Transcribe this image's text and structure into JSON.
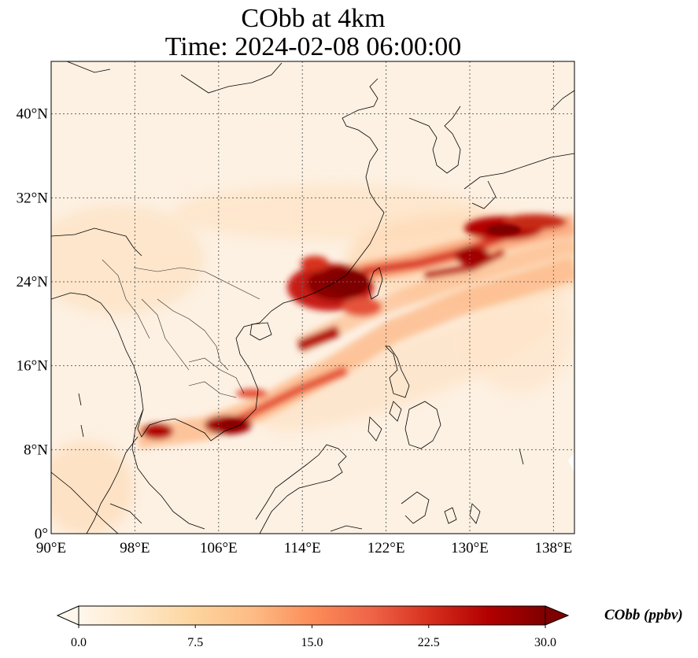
{
  "title": {
    "line1": "CObb at 4km",
    "line2": "Time: 2024-02-08 06:00:00"
  },
  "map": {
    "projection": "PlateCarree",
    "lon_range": [
      90,
      140
    ],
    "lat_range": [
      0,
      45
    ],
    "gridlines": "dotted",
    "colormap": "OrRd",
    "lon_ticks": [
      {
        "value": 90,
        "label": "90°E"
      },
      {
        "value": 98,
        "label": "98°E"
      },
      {
        "value": 106,
        "label": "106°E"
      },
      {
        "value": 114,
        "label": "114°E"
      },
      {
        "value": 122,
        "label": "122°E"
      },
      {
        "value": 130,
        "label": "130°E"
      },
      {
        "value": 138,
        "label": "138°E"
      }
    ],
    "lat_ticks": [
      {
        "value": 0,
        "label": "0°"
      },
      {
        "value": 8,
        "label": "8°N"
      },
      {
        "value": 16,
        "label": "16°N"
      },
      {
        "value": 24,
        "label": "24°N"
      },
      {
        "value": 32,
        "label": "32°N"
      },
      {
        "value": 40,
        "label": "40°N"
      }
    ],
    "plumes": [
      {
        "name": "plume-taiwan-strait",
        "lon": 117.5,
        "lat": 23.8,
        "value": 30
      },
      {
        "name": "plume-south-china-sea",
        "lon": 117.5,
        "lat": 18.8,
        "value": 24
      },
      {
        "name": "plume-cambodia",
        "lon": 106.5,
        "lat": 10.2,
        "value": 25
      },
      {
        "name": "plume-thailand",
        "lon": 100.5,
        "lat": 9.8,
        "value": 22
      },
      {
        "name": "plume-east-china-sea",
        "lon": 127.5,
        "lat": 25.5,
        "value": 22
      },
      {
        "name": "plume-kyushu-south",
        "lon": 133.5,
        "lat": 28.7,
        "value": 28
      }
    ]
  },
  "colorbar": {
    "min": 0,
    "max": 30,
    "extend": "both",
    "tick_labels": [
      "0.0",
      "7.5",
      "15.0",
      "22.5",
      "30.0"
    ],
    "label": "CObb (ppbv)",
    "colors": [
      "#fff7ec",
      "#fee8c8",
      "#fdd49e",
      "#fdbb84",
      "#fc8d59",
      "#ef6548",
      "#d7301f",
      "#b30000",
      "#7f0000"
    ]
  }
}
